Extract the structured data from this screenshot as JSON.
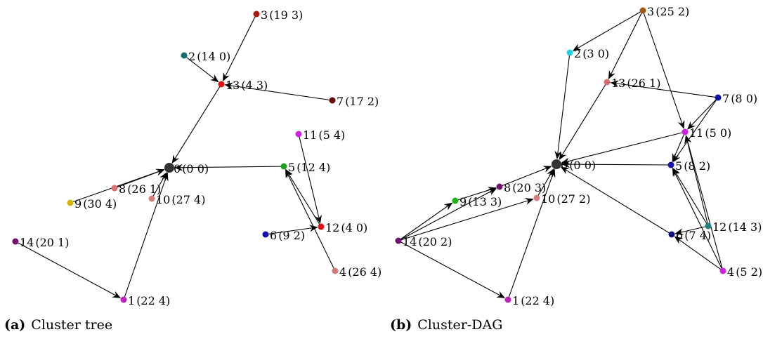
{
  "panels": [
    {
      "caption_tag": "(a)",
      "caption_text": "Cluster tree",
      "nodes": [
        {
          "id": "0",
          "meta": "(0 0)",
          "color": "#333333"
        },
        {
          "id": "1",
          "meta": "(22 4)",
          "color": "#c020c0"
        },
        {
          "id": "2",
          "meta": "(14 0)",
          "color": "#0e7070"
        },
        {
          "id": "3",
          "meta": "(19 3)",
          "color": "#aa1a10"
        },
        {
          "id": "4",
          "meta": "(26 4)",
          "color": "#d87878"
        },
        {
          "id": "5",
          "meta": "(12 4)",
          "color": "#20a020"
        },
        {
          "id": "6",
          "meta": "(9 2)",
          "color": "#1010aa"
        },
        {
          "id": "7",
          "meta": "(17 2)",
          "color": "#6a0808"
        },
        {
          "id": "8",
          "meta": "(26 1)",
          "color": "#d87070"
        },
        {
          "id": "9",
          "meta": "(30 4)",
          "color": "#d4b400"
        },
        {
          "id": "10",
          "meta": "(27 4)",
          "color": "#d88080"
        },
        {
          "id": "11",
          "meta": "(5 4)",
          "color": "#d020e0"
        },
        {
          "id": "12",
          "meta": "(4 0)",
          "color": "#e01010"
        },
        {
          "id": "13",
          "meta": "(4 3)",
          "color": "#e01010"
        },
        {
          "id": "14",
          "meta": "(20 1)",
          "color": "#701070"
        }
      ],
      "edges": [
        [
          "3",
          "13"
        ],
        [
          "2",
          "13"
        ],
        [
          "7",
          "13"
        ],
        [
          "13",
          "0"
        ],
        [
          "5",
          "0"
        ],
        [
          "8",
          "0"
        ],
        [
          "9",
          "0"
        ],
        [
          "10",
          "0"
        ],
        [
          "1",
          "0"
        ],
        [
          "14",
          "1"
        ],
        [
          "11",
          "12"
        ],
        [
          "4",
          "5"
        ],
        [
          "12",
          "5"
        ],
        [
          "6",
          "12"
        ]
      ]
    },
    {
      "caption_tag": "(b)",
      "caption_text": "Cluster-DAG",
      "nodes": [
        {
          "id": "0",
          "meta": "(0 0)",
          "color": "#333333"
        },
        {
          "id": "1",
          "meta": "(22 4)",
          "color": "#c020c0"
        },
        {
          "id": "2",
          "meta": "(3 0)",
          "color": "#20d0e0"
        },
        {
          "id": "3",
          "meta": "(25 2)",
          "color": "#a05a10"
        },
        {
          "id": "4",
          "meta": "(5 2)",
          "color": "#d020e0"
        },
        {
          "id": "5",
          "meta": "(8 2)",
          "color": "#1010aa"
        },
        {
          "id": "6",
          "meta": "(7 4)",
          "color": "#101080"
        },
        {
          "id": "7",
          "meta": "(8 0)",
          "color": "#1010aa"
        },
        {
          "id": "8",
          "meta": "(20 3)",
          "color": "#701070"
        },
        {
          "id": "9",
          "meta": "(13 3)",
          "color": "#20b020"
        },
        {
          "id": "10",
          "meta": "(27 2)",
          "color": "#d88080"
        },
        {
          "id": "11",
          "meta": "(5 0)",
          "color": "#d020e0"
        },
        {
          "id": "12",
          "meta": "(14 3)",
          "color": "#208080"
        },
        {
          "id": "13",
          "meta": "(26 1)",
          "color": "#d87070"
        },
        {
          "id": "14",
          "meta": "(20 2)",
          "color": "#701070"
        }
      ],
      "edges": [
        [
          "3",
          "2"
        ],
        [
          "3",
          "13"
        ],
        [
          "3",
          "11"
        ],
        [
          "2",
          "0"
        ],
        [
          "13",
          "0"
        ],
        [
          "7",
          "13"
        ],
        [
          "7",
          "11"
        ],
        [
          "7",
          "5"
        ],
        [
          "11",
          "0"
        ],
        [
          "11",
          "5"
        ],
        [
          "5",
          "0"
        ],
        [
          "8",
          "0"
        ],
        [
          "9",
          "8"
        ],
        [
          "10",
          "0"
        ],
        [
          "1",
          "0"
        ],
        [
          "14",
          "9"
        ],
        [
          "14",
          "8"
        ],
        [
          "14",
          "10"
        ],
        [
          "14",
          "1"
        ],
        [
          "6",
          "0"
        ],
        [
          "12",
          "6"
        ],
        [
          "12",
          "5"
        ],
        [
          "12",
          "11"
        ],
        [
          "4",
          "6"
        ],
        [
          "4",
          "5"
        ],
        [
          "4",
          "11"
        ]
      ]
    }
  ]
}
